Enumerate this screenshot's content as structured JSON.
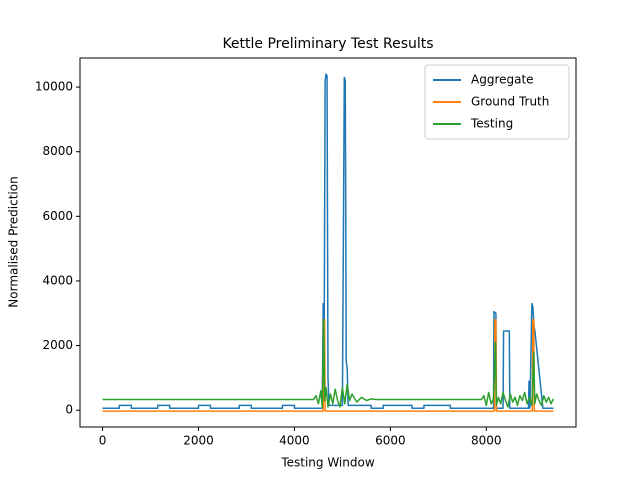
{
  "chart_data": {
    "type": "line",
    "title": "Kettle Preliminary Test Results",
    "x_label": "Testing Window",
    "y_label": "Normalised Prediction",
    "xlim": [
      -470,
      9870
    ],
    "ylim": [
      -520,
      10900
    ],
    "xticks": [
      0,
      2000,
      4000,
      6000,
      8000
    ],
    "yticks": [
      0,
      2000,
      4000,
      6000,
      8000,
      10000
    ],
    "legend": "upper right",
    "series": [
      {
        "name": "Aggregate",
        "color": "#1f77b4",
        "x": [
          0,
          350,
          350,
          600,
          600,
          1150,
          1150,
          1400,
          1400,
          2000,
          2000,
          2250,
          2250,
          2850,
          2850,
          3100,
          3100,
          3750,
          3750,
          4000,
          4000,
          4580,
          4600,
          4620,
          4640,
          4660,
          4680,
          4700,
          4720,
          5000,
          5040,
          5060,
          5080,
          5100,
          5120,
          5600,
          5600,
          5850,
          5850,
          6450,
          6450,
          6700,
          6700,
          7250,
          7250,
          7550,
          7550,
          8150,
          8160,
          8200,
          8210,
          8350,
          8360,
          8480,
          8490,
          8880,
          8890,
          8910,
          8950,
          8970,
          9000,
          9010,
          9180,
          9200,
          9400
        ],
        "values": [
          60,
          60,
          150,
          150,
          60,
          60,
          150,
          150,
          60,
          60,
          150,
          150,
          60,
          60,
          150,
          150,
          60,
          60,
          150,
          150,
          60,
          60,
          3300,
          2000,
          10200,
          10400,
          10350,
          1000,
          150,
          150,
          10300,
          10200,
          1500,
          1300,
          150,
          150,
          60,
          60,
          150,
          150,
          60,
          60,
          150,
          150,
          60,
          60,
          60,
          60,
          3050,
          3000,
          60,
          60,
          2450,
          2450,
          60,
          60,
          900,
          60,
          3300,
          3200,
          2500,
          2500,
          60,
          60,
          60
        ]
      },
      {
        "name": "Ground Truth",
        "color": "#ff7f0e",
        "x": [
          0,
          4600,
          4610,
          4630,
          4640,
          8170,
          8180,
          8200,
          8210,
          8960,
          8970,
          8990,
          9000,
          9400
        ],
        "values": [
          -30,
          -30,
          2800,
          2800,
          -30,
          -30,
          2800,
          2800,
          -30,
          -30,
          2800,
          2800,
          -30,
          -30
        ]
      },
      {
        "name": "Testing",
        "color": "#2ca02c",
        "x": [
          0,
          4400,
          4450,
          4500,
          4550,
          4580,
          4610,
          4630,
          4660,
          4700,
          4750,
          4800,
          4850,
          4900,
          4950,
          5000,
          5050,
          5100,
          5150,
          5200,
          5300,
          5400,
          5500,
          5600,
          5700,
          7900,
          7950,
          8000,
          8050,
          8100,
          8150,
          8190,
          8210,
          8250,
          8300,
          8350,
          8400,
          8450,
          8500,
          8550,
          8600,
          8650,
          8700,
          8750,
          8800,
          8850,
          8900,
          8950,
          8990,
          9010,
          9050,
          9100,
          9150,
          9200,
          9250,
          9300,
          9350,
          9400
        ],
        "values": [
          330,
          330,
          450,
          200,
          600,
          100,
          2800,
          300,
          700,
          100,
          500,
          200,
          650,
          300,
          100,
          700,
          200,
          800,
          300,
          500,
          250,
          400,
          300,
          350,
          330,
          330,
          450,
          150,
          550,
          200,
          350,
          2100,
          150,
          400,
          200,
          550,
          300,
          100,
          500,
          250,
          400,
          150,
          450,
          300,
          550,
          200,
          400,
          150,
          1800,
          200,
          500,
          300,
          150,
          450,
          250,
          400,
          200,
          350
        ]
      }
    ]
  }
}
